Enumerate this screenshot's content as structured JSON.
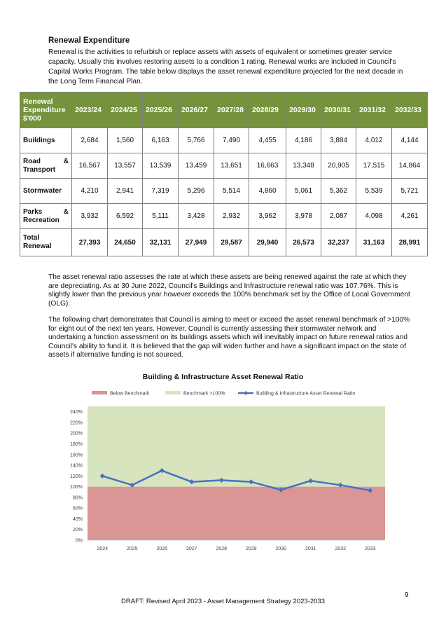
{
  "section": {
    "heading": "Renewal Expenditure",
    "intro": "Renewal is the activities to refurbish or replace assets with assets of equivalent or sometimes greater service capacity. Usually this involves restoring assets to a condition 1 rating. Renewal works are included in Council's Capital Works Program. The table below displays the asset renewal expenditure projected for the next decade in the Long Term Financial Plan."
  },
  "table": {
    "header_label": "Renewal Expenditure $'000",
    "years": [
      "2023/24",
      "2024/25",
      "2025/26",
      "2026/27",
      "2027/28",
      "2028/29",
      "2029/30",
      "2030/31",
      "2031/32",
      "2032/33"
    ],
    "rows": [
      {
        "label_a": "Buildings",
        "label_b": "",
        "label_c": "",
        "values": [
          "2,684",
          "1,560",
          "6,163",
          "5,766",
          "7,490",
          "4,455",
          "4,186",
          "3,884",
          "4,012",
          "4,144"
        ]
      },
      {
        "label_a": "Road",
        "label_b": "&",
        "label_c": "Transport",
        "values": [
          "16,567",
          "13,557",
          "13,539",
          "13,459",
          "13,651",
          "16,663",
          "13,348",
          "20,905",
          "17,515",
          "14,864"
        ]
      },
      {
        "label_a": "Stormwater",
        "label_b": "",
        "label_c": "",
        "values": [
          "4,210",
          "2,941",
          "7,319",
          "5,296",
          "5,514",
          "4,860",
          "5,061",
          "5,362",
          "5,539",
          "5,721"
        ]
      },
      {
        "label_a": "Parks",
        "label_b": "&",
        "label_c": "Recreation",
        "values": [
          "3,932",
          "6,592",
          "5,111",
          "3,428",
          "2,932",
          "3,962",
          "3,978",
          "2,087",
          "4,098",
          "4,261"
        ]
      }
    ],
    "total": {
      "label": "Total Renewal",
      "values": [
        "27,393",
        "24,650",
        "32,131",
        "27,949",
        "29,587",
        "29,940",
        "26,573",
        "32,237",
        "31,163",
        "28,991"
      ]
    }
  },
  "paragraphs": [
    "The asset renewal ratio assesses the rate at which these assets are being renewed against the rate at which they are depreciating. As at 30 June 2022, Council's Buildings and Infrastructure renewal ratio was 107.76%. This is slightly lower than the previous year however exceeds the 100% benchmark set by the Office of Local Government (OLG).",
    "The following chart demonstrates that Council is aiming to meet or exceed the asset renewal benchmark of >100% for eight out of the next ten years. However, Council is currently assessing their stormwater network and undertaking a function assessment on its buildings assets which will inevitably impact on future renewal ratios and Council's ability to fund it. It is believed that the gap will widen further and have a significant impact on the state of assets if alternative funding is not sourced."
  ],
  "chart_data": {
    "type": "line",
    "title": "Building & Infrastructure Asset Renewal Ratio",
    "categories": [
      "2024",
      "2025",
      "2026",
      "2027",
      "2028",
      "2029",
      "2030",
      "2031",
      "2032",
      "2033"
    ],
    "series": [
      {
        "name": "Building & Infrastructure Asset Renewal Ratio",
        "values": [
          120,
          103,
          130,
          109,
          112,
          109,
          94,
          111,
          103,
          93
        ],
        "color": "#4472c4"
      }
    ],
    "bands": [
      {
        "name": "Below Benchmark",
        "from": 0,
        "to": 100,
        "color": "#d99694"
      },
      {
        "name": "Benchmark >100%",
        "from": 100,
        "to": 250,
        "color": "#d7e4bd"
      }
    ],
    "y_ticks": [
      "0%",
      "20%",
      "40%",
      "60%",
      "80%",
      "100%",
      "120%",
      "140%",
      "160%",
      "180%",
      "200%",
      "220%",
      "240%"
    ],
    "ylim": [
      0,
      250
    ],
    "legend_position": "top",
    "grid": false
  },
  "footer": {
    "page_number": "9",
    "text": "DRAFT: Revised April 2023 - Asset Management Strategy 2023-2033"
  }
}
